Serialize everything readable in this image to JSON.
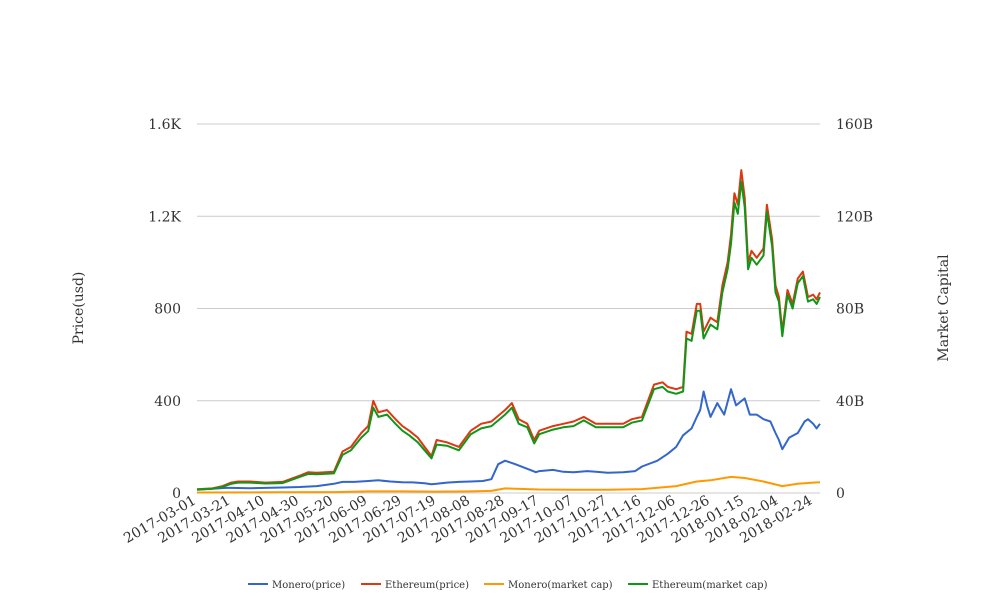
{
  "chart_data": {
    "type": "line",
    "title": "",
    "xlabel": "",
    "ylabel": "Price(usd)",
    "y2label": "Market Capital",
    "xlim": [
      "2017-03-01",
      "2018-02-28"
    ],
    "ylim": [
      0,
      1600
    ],
    "y2lim": [
      0,
      160000000000
    ],
    "x_ticks": [
      "2017-03-01",
      "2017-03-21",
      "2017-04-10",
      "2017-04-30",
      "2017-05-20",
      "2017-06-09",
      "2017-06-29",
      "2017-07-19",
      "2017-08-08",
      "2017-08-28",
      "2017-09-17",
      "2017-10-07",
      "2017-10-27",
      "2017-11-16",
      "2017-12-06",
      "2017-12-26",
      "2018-01-15",
      "2018-02-04",
      "2018-02-24"
    ],
    "y_ticks": [
      {
        "value": 0,
        "label": "0"
      },
      {
        "value": 400,
        "label": "400"
      },
      {
        "value": 800,
        "label": "800"
      },
      {
        "value": 1200,
        "label": "1.2K"
      },
      {
        "value": 1600,
        "label": "1.6K"
      }
    ],
    "y2_ticks": [
      {
        "value": 0,
        "label": "0"
      },
      {
        "value": 40000000000,
        "label": "40B"
      },
      {
        "value": 80000000000,
        "label": "80B"
      },
      {
        "value": 120000000000,
        "label": "120B"
      },
      {
        "value": 160000000000,
        "label": "160B"
      }
    ],
    "grid": "horizontal",
    "legend_position": "bottom",
    "series": [
      {
        "name": "Monero(price)",
        "axis": "left",
        "color": "#3366cc",
        "points": [
          [
            "2017-03-01",
            14
          ],
          [
            "2017-03-10",
            18
          ],
          [
            "2017-03-18",
            22
          ],
          [
            "2017-03-21",
            22
          ],
          [
            "2017-04-01",
            21
          ],
          [
            "2017-04-10",
            22
          ],
          [
            "2017-04-20",
            24
          ],
          [
            "2017-04-30",
            26
          ],
          [
            "2017-05-10",
            30
          ],
          [
            "2017-05-20",
            40
          ],
          [
            "2017-05-25",
            48
          ],
          [
            "2017-06-01",
            48
          ],
          [
            "2017-06-09",
            52
          ],
          [
            "2017-06-15",
            55
          ],
          [
            "2017-06-22",
            50
          ],
          [
            "2017-06-29",
            47
          ],
          [
            "2017-07-05",
            46
          ],
          [
            "2017-07-12",
            42
          ],
          [
            "2017-07-16",
            38
          ],
          [
            "2017-07-19",
            40
          ],
          [
            "2017-07-25",
            45
          ],
          [
            "2017-08-01",
            48
          ],
          [
            "2017-08-08",
            50
          ],
          [
            "2017-08-15",
            52
          ],
          [
            "2017-08-20",
            60
          ],
          [
            "2017-08-24",
            125
          ],
          [
            "2017-08-28",
            140
          ],
          [
            "2017-09-03",
            125
          ],
          [
            "2017-09-10",
            105
          ],
          [
            "2017-09-15",
            90
          ],
          [
            "2017-09-17",
            95
          ],
          [
            "2017-09-25",
            100
          ],
          [
            "2017-10-01",
            92
          ],
          [
            "2017-10-07",
            90
          ],
          [
            "2017-10-15",
            95
          ],
          [
            "2017-10-20",
            92
          ],
          [
            "2017-10-27",
            88
          ],
          [
            "2017-11-05",
            90
          ],
          [
            "2017-11-12",
            95
          ],
          [
            "2017-11-16",
            115
          ],
          [
            "2017-11-25",
            140
          ],
          [
            "2017-12-01",
            170
          ],
          [
            "2017-12-06",
            200
          ],
          [
            "2017-12-10",
            250
          ],
          [
            "2017-12-15",
            280
          ],
          [
            "2017-12-18",
            330
          ],
          [
            "2017-12-20",
            360
          ],
          [
            "2017-12-22",
            440
          ],
          [
            "2017-12-24",
            380
          ],
          [
            "2017-12-26",
            330
          ],
          [
            "2017-12-30",
            390
          ],
          [
            "2018-01-03",
            340
          ],
          [
            "2018-01-07",
            450
          ],
          [
            "2018-01-10",
            380
          ],
          [
            "2018-01-15",
            410
          ],
          [
            "2018-01-18",
            340
          ],
          [
            "2018-01-22",
            340
          ],
          [
            "2018-01-26",
            320
          ],
          [
            "2018-01-30",
            310
          ],
          [
            "2018-02-02",
            260
          ],
          [
            "2018-02-04",
            230
          ],
          [
            "2018-02-06",
            190
          ],
          [
            "2018-02-10",
            240
          ],
          [
            "2018-02-15",
            260
          ],
          [
            "2018-02-19",
            310
          ],
          [
            "2018-02-21",
            320
          ],
          [
            "2018-02-24",
            300
          ],
          [
            "2018-02-26",
            280
          ],
          [
            "2018-02-28",
            300
          ]
        ]
      },
      {
        "name": "Ethereum(price)",
        "axis": "left",
        "color": "#dc3912",
        "points": [
          [
            "2017-03-01",
            16
          ],
          [
            "2017-03-10",
            20
          ],
          [
            "2017-03-16",
            30
          ],
          [
            "2017-03-21",
            45
          ],
          [
            "2017-03-25",
            50
          ],
          [
            "2017-04-01",
            50
          ],
          [
            "2017-04-10",
            45
          ],
          [
            "2017-04-20",
            48
          ],
          [
            "2017-04-30",
            75
          ],
          [
            "2017-05-05",
            90
          ],
          [
            "2017-05-10",
            88
          ],
          [
            "2017-05-20",
            92
          ],
          [
            "2017-05-25",
            180
          ],
          [
            "2017-05-30",
            200
          ],
          [
            "2017-06-05",
            260
          ],
          [
            "2017-06-09",
            290
          ],
          [
            "2017-06-12",
            400
          ],
          [
            "2017-06-15",
            350
          ],
          [
            "2017-06-20",
            360
          ],
          [
            "2017-06-25",
            320
          ],
          [
            "2017-06-29",
            290
          ],
          [
            "2017-07-03",
            270
          ],
          [
            "2017-07-08",
            240
          ],
          [
            "2017-07-12",
            200
          ],
          [
            "2017-07-16",
            160
          ],
          [
            "2017-07-19",
            230
          ],
          [
            "2017-07-25",
            220
          ],
          [
            "2017-08-01",
            200
          ],
          [
            "2017-08-08",
            270
          ],
          [
            "2017-08-14",
            300
          ],
          [
            "2017-08-20",
            310
          ],
          [
            "2017-08-28",
            360
          ],
          [
            "2017-09-01",
            390
          ],
          [
            "2017-09-05",
            320
          ],
          [
            "2017-09-10",
            300
          ],
          [
            "2017-09-14",
            230
          ],
          [
            "2017-09-17",
            270
          ],
          [
            "2017-09-25",
            290
          ],
          [
            "2017-10-01",
            300
          ],
          [
            "2017-10-07",
            310
          ],
          [
            "2017-10-13",
            330
          ],
          [
            "2017-10-20",
            300
          ],
          [
            "2017-10-27",
            300
          ],
          [
            "2017-11-05",
            300
          ],
          [
            "2017-11-10",
            320
          ],
          [
            "2017-11-16",
            330
          ],
          [
            "2017-11-23",
            470
          ],
          [
            "2017-11-28",
            480
          ],
          [
            "2017-12-01",
            460
          ],
          [
            "2017-12-06",
            450
          ],
          [
            "2017-12-10",
            460
          ],
          [
            "2017-12-12",
            700
          ],
          [
            "2017-12-15",
            690
          ],
          [
            "2017-12-18",
            820
          ],
          [
            "2017-12-20",
            820
          ],
          [
            "2017-12-22",
            700
          ],
          [
            "2017-12-26",
            760
          ],
          [
            "2017-12-30",
            740
          ],
          [
            "2018-01-02",
            900
          ],
          [
            "2018-01-05",
            1000
          ],
          [
            "2018-01-07",
            1120
          ],
          [
            "2018-01-09",
            1300
          ],
          [
            "2018-01-11",
            1250
          ],
          [
            "2018-01-13",
            1400
          ],
          [
            "2018-01-15",
            1280
          ],
          [
            "2018-01-17",
            1000
          ],
          [
            "2018-01-19",
            1050
          ],
          [
            "2018-01-22",
            1020
          ],
          [
            "2018-01-26",
            1060
          ],
          [
            "2018-01-28",
            1250
          ],
          [
            "2018-01-31",
            1100
          ],
          [
            "2018-02-02",
            900
          ],
          [
            "2018-02-04",
            850
          ],
          [
            "2018-02-06",
            700
          ],
          [
            "2018-02-09",
            880
          ],
          [
            "2018-02-12",
            820
          ],
          [
            "2018-02-15",
            930
          ],
          [
            "2018-02-18",
            960
          ],
          [
            "2018-02-21",
            850
          ],
          [
            "2018-02-24",
            860
          ],
          [
            "2018-02-26",
            840
          ],
          [
            "2018-02-28",
            870
          ]
        ]
      },
      {
        "name": "Monero(market cap)",
        "axis": "right",
        "color": "#ff9900",
        "points": [
          [
            "2017-03-01",
            200000000
          ],
          [
            "2017-04-10",
            300000000
          ],
          [
            "2017-05-20",
            400000000
          ],
          [
            "2017-06-09",
            700000000
          ],
          [
            "2017-06-29",
            700000000
          ],
          [
            "2017-07-19",
            600000000
          ],
          [
            "2017-08-08",
            700000000
          ],
          [
            "2017-08-20",
            900000000
          ],
          [
            "2017-08-28",
            2000000000
          ],
          [
            "2017-09-17",
            1500000000
          ],
          [
            "2017-10-07",
            1400000000
          ],
          [
            "2017-10-27",
            1400000000
          ],
          [
            "2017-11-16",
            1700000000
          ],
          [
            "2017-12-06",
            3000000000
          ],
          [
            "2017-12-18",
            5000000000
          ],
          [
            "2017-12-26",
            5500000000
          ],
          [
            "2018-01-07",
            7000000000
          ],
          [
            "2018-01-15",
            6500000000
          ],
          [
            "2018-01-26",
            5000000000
          ],
          [
            "2018-02-06",
            3000000000
          ],
          [
            "2018-02-15",
            4000000000
          ],
          [
            "2018-02-24",
            4500000000
          ],
          [
            "2018-02-28",
            4700000000
          ]
        ]
      },
      {
        "name": "Ethereum(market cap)",
        "axis": "right",
        "color": "#109618",
        "points": [
          [
            "2017-03-01",
            1500000000
          ],
          [
            "2017-03-10",
            1800000000
          ],
          [
            "2017-03-16",
            2700000000
          ],
          [
            "2017-03-21",
            4000000000
          ],
          [
            "2017-03-25",
            4500000000
          ],
          [
            "2017-04-01",
            4500000000
          ],
          [
            "2017-04-10",
            4100000000
          ],
          [
            "2017-04-20",
            4300000000
          ],
          [
            "2017-04-30",
            7000000000
          ],
          [
            "2017-05-05",
            8300000000
          ],
          [
            "2017-05-10",
            8100000000
          ],
          [
            "2017-05-20",
            8500000000
          ],
          [
            "2017-05-25",
            16500000000
          ],
          [
            "2017-05-30",
            18500000000
          ],
          [
            "2017-06-05",
            24000000000
          ],
          [
            "2017-06-09",
            26800000000
          ],
          [
            "2017-06-12",
            37000000000
          ],
          [
            "2017-06-15",
            33000000000
          ],
          [
            "2017-06-20",
            34000000000
          ],
          [
            "2017-06-25",
            30000000000
          ],
          [
            "2017-06-29",
            27000000000
          ],
          [
            "2017-07-03",
            25000000000
          ],
          [
            "2017-07-08",
            22000000000
          ],
          [
            "2017-07-12",
            18500000000
          ],
          [
            "2017-07-16",
            15000000000
          ],
          [
            "2017-07-19",
            21000000000
          ],
          [
            "2017-07-25",
            20500000000
          ],
          [
            "2017-08-01",
            18500000000
          ],
          [
            "2017-08-08",
            25500000000
          ],
          [
            "2017-08-14",
            28000000000
          ],
          [
            "2017-08-20",
            29000000000
          ],
          [
            "2017-08-28",
            34000000000
          ],
          [
            "2017-09-01",
            37000000000
          ],
          [
            "2017-09-05",
            30000000000
          ],
          [
            "2017-09-10",
            28500000000
          ],
          [
            "2017-09-14",
            21500000000
          ],
          [
            "2017-09-17",
            25500000000
          ],
          [
            "2017-09-25",
            27500000000
          ],
          [
            "2017-10-01",
            28500000000
          ],
          [
            "2017-10-07",
            29000000000
          ],
          [
            "2017-10-13",
            31500000000
          ],
          [
            "2017-10-20",
            28500000000
          ],
          [
            "2017-10-27",
            28500000000
          ],
          [
            "2017-11-05",
            28500000000
          ],
          [
            "2017-11-10",
            30500000000
          ],
          [
            "2017-11-16",
            31500000000
          ],
          [
            "2017-11-23",
            45000000000
          ],
          [
            "2017-11-28",
            46000000000
          ],
          [
            "2017-12-01",
            44000000000
          ],
          [
            "2017-12-06",
            43000000000
          ],
          [
            "2017-12-10",
            44000000000
          ],
          [
            "2017-12-12",
            67000000000
          ],
          [
            "2017-12-15",
            66000000000
          ],
          [
            "2017-12-18",
            79000000000
          ],
          [
            "2017-12-20",
            79000000000
          ],
          [
            "2017-12-22",
            67000000000
          ],
          [
            "2017-12-26",
            73000000000
          ],
          [
            "2017-12-30",
            71000000000
          ],
          [
            "2018-01-02",
            87000000000
          ],
          [
            "2018-01-05",
            97000000000
          ],
          [
            "2018-01-07",
            108000000000
          ],
          [
            "2018-01-09",
            126000000000
          ],
          [
            "2018-01-11",
            121000000000
          ],
          [
            "2018-01-13",
            135000000000
          ],
          [
            "2018-01-15",
            124000000000
          ],
          [
            "2018-01-17",
            97000000000
          ],
          [
            "2018-01-19",
            102000000000
          ],
          [
            "2018-01-22",
            99000000000
          ],
          [
            "2018-01-26",
            103000000000
          ],
          [
            "2018-01-28",
            122000000000
          ],
          [
            "2018-01-31",
            107000000000
          ],
          [
            "2018-02-02",
            87000000000
          ],
          [
            "2018-02-04",
            83000000000
          ],
          [
            "2018-02-06",
            68000000000
          ],
          [
            "2018-02-09",
            86000000000
          ],
          [
            "2018-02-12",
            80000000000
          ],
          [
            "2018-02-15",
            91000000000
          ],
          [
            "2018-02-18",
            94000000000
          ],
          [
            "2018-02-21",
            83000000000
          ],
          [
            "2018-02-24",
            84000000000
          ],
          [
            "2018-02-26",
            82000000000
          ],
          [
            "2018-02-28",
            85000000000
          ]
        ]
      }
    ]
  }
}
